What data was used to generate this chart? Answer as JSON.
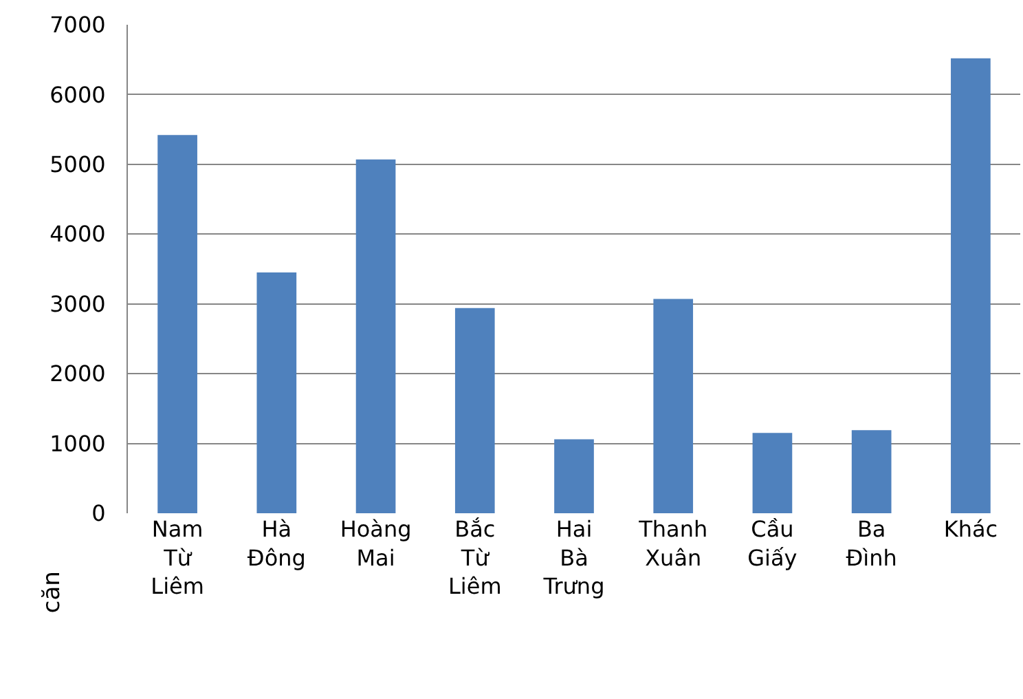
{
  "chart_data": {
    "type": "bar",
    "ylabel": "căn",
    "categories": [
      "Nam Từ Liêm",
      "Hà Đông",
      "Hoàng Mai",
      "Bắc Từ Liêm",
      "Hai Bà Trưng",
      "Thanh Xuân",
      "Cầu Giấy",
      "Ba Đình",
      "Khác"
    ],
    "values": [
      5420,
      3450,
      5070,
      2940,
      1060,
      3070,
      1150,
      1190,
      6520
    ],
    "color": "#4f81bd",
    "ylim": [
      0,
      7000
    ],
    "yticks": [
      0,
      1000,
      2000,
      3000,
      4000,
      5000,
      6000,
      7000
    ],
    "grid": "y"
  }
}
